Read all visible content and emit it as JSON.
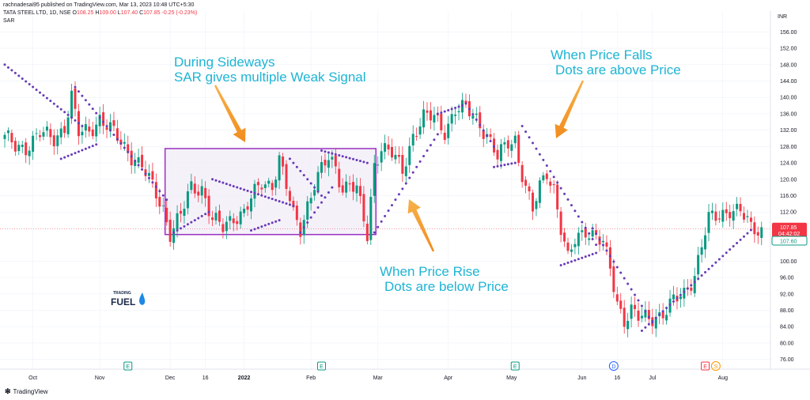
{
  "header": {
    "publisher_line": "rachnadesai95 published on TradingView.com, Mar 13, 2023 10:48 UTC+5:30",
    "symbol": "TATA STEEL LTD, 1D, NSE",
    "ohlc_open_label": "O",
    "ohlc_open": "108.25",
    "ohlc_high_label": "H",
    "ohlc_high": "109.00",
    "ohlc_low_label": "L",
    "ohlc_low": "107.40",
    "ohlc_close_label": "C",
    "ohlc_close": "107.85",
    "ohlc_change": "-0.25 (-0.23%)",
    "indicator": "SAR",
    "currency": "INR"
  },
  "footer": {
    "brand": "TradingView"
  },
  "watermark": "TRADING FUEL",
  "chart_data": {
    "type": "candlestick",
    "ylim": [
      74,
      158
    ],
    "yticks": [
      156,
      152,
      148,
      144,
      140,
      136,
      132,
      128,
      124,
      120,
      116,
      112,
      100,
      96,
      92,
      88,
      84,
      80,
      76
    ],
    "ytick_labels": [
      "156.00",
      "152.00",
      "148.00",
      "144.00",
      "140.00",
      "136.00",
      "132.00",
      "128.00",
      "124.00",
      "120.00",
      "116.00",
      "112.00",
      "100.00",
      "96.00",
      "92.00",
      "88.00",
      "84.00",
      "80.00",
      "76.00"
    ],
    "xticks": [
      {
        "label": "Oct",
        "bar": 8
      },
      {
        "label": "Nov",
        "bar": 27
      },
      {
        "label": "Dec",
        "bar": 47
      },
      {
        "label": "16",
        "bar": 57
      },
      {
        "label": "2022",
        "bar": 68
      },
      {
        "label": "Feb",
        "bar": 87
      },
      {
        "label": "Mar",
        "bar": 106
      },
      {
        "label": "Apr",
        "bar": 126
      },
      {
        "label": "May",
        "bar": 144
      },
      {
        "label": "Jun",
        "bar": 164
      },
      {
        "label": "16",
        "bar": 174
      },
      {
        "label": "Jul",
        "bar": 184
      },
      {
        "label": "Aug",
        "bar": 204
      }
    ],
    "last_price": {
      "value": 107.85,
      "label": "107.85",
      "countdown": "04:42:02"
    },
    "sar_value_label": {
      "value": 107.6,
      "label": "107.60"
    },
    "events": [
      {
        "bar": 35,
        "label": "E",
        "kind": "earnings"
      },
      {
        "bar": 90,
        "label": "E",
        "kind": "earnings"
      },
      {
        "bar": 145,
        "label": "E",
        "kind": "earnings"
      },
      {
        "bar": 173,
        "label": "D",
        "kind": "dividend"
      },
      {
        "bar": 199,
        "label": "E",
        "kind": "earnings"
      },
      {
        "bar": 202,
        "label": "S",
        "kind": "split"
      }
    ],
    "annotations": [
      {
        "name": "sideways",
        "lines": [
          "During Sideways",
          "SAR gives multiple Weak Signal"
        ]
      },
      {
        "name": "falls",
        "lines": [
          "When Price Falls",
          "Dots are above Price"
        ]
      },
      {
        "name": "rise",
        "lines": [
          "When Price Rise",
          "Dots are below Price"
        ]
      }
    ],
    "sideways_box": {
      "bar_start": 46,
      "bar_end": 105,
      "price_top": 127.5,
      "price_bottom": 106.5
    },
    "bar_count": 216,
    "close_anchors": [
      [
        0,
        130
      ],
      [
        3,
        128
      ],
      [
        6,
        128
      ],
      [
        10,
        131
      ],
      [
        14,
        130
      ],
      [
        17,
        133
      ],
      [
        19,
        140
      ],
      [
        21,
        131
      ],
      [
        24,
        132
      ],
      [
        27,
        135
      ],
      [
        30,
        132
      ],
      [
        33,
        129
      ],
      [
        36,
        126
      ],
      [
        39,
        123
      ],
      [
        42,
        118
      ],
      [
        45,
        113
      ],
      [
        47,
        107
      ],
      [
        50,
        111
      ],
      [
        53,
        118
      ],
      [
        56,
        118
      ],
      [
        59,
        110
      ],
      [
        62,
        108
      ],
      [
        65,
        111
      ],
      [
        68,
        112
      ],
      [
        70,
        115
      ],
      [
        73,
        119
      ],
      [
        76,
        119
      ],
      [
        78,
        125
      ],
      [
        80,
        118
      ],
      [
        82,
        111
      ],
      [
        84,
        108
      ],
      [
        86,
        114
      ],
      [
        88,
        119
      ],
      [
        90,
        122
      ],
      [
        92,
        125
      ],
      [
        94,
        123
      ],
      [
        96,
        118
      ],
      [
        98,
        119
      ],
      [
        100,
        117
      ],
      [
        102,
        110
      ],
      [
        103,
        106
      ],
      [
        105,
        124
      ],
      [
        107,
        128
      ],
      [
        110,
        126
      ],
      [
        113,
        122
      ],
      [
        116,
        131
      ],
      [
        119,
        135
      ],
      [
        122,
        135
      ],
      [
        125,
        132
      ],
      [
        128,
        137
      ],
      [
        131,
        137
      ],
      [
        134,
        135
      ],
      [
        137,
        131
      ],
      [
        140,
        125
      ],
      [
        143,
        129
      ],
      [
        145,
        130
      ],
      [
        146,
        125
      ],
      [
        148,
        118
      ],
      [
        150,
        112
      ],
      [
        152,
        118
      ],
      [
        154,
        122
      ],
      [
        156,
        118
      ],
      [
        158,
        108
      ],
      [
        160,
        100
      ],
      [
        162,
        105
      ],
      [
        165,
        108
      ],
      [
        168,
        106
      ],
      [
        170,
        104
      ],
      [
        172,
        98
      ],
      [
        174,
        90
      ],
      [
        176,
        86
      ],
      [
        178,
        88
      ],
      [
        180,
        86
      ],
      [
        183,
        86
      ],
      [
        186,
        87
      ],
      [
        188,
        88
      ],
      [
        190,
        90
      ],
      [
        193,
        92
      ],
      [
        196,
        97
      ],
      [
        198,
        104
      ],
      [
        200,
        110
      ],
      [
        203,
        111
      ],
      [
        206,
        113
      ],
      [
        209,
        112
      ],
      [
        212,
        107.85
      ],
      [
        215,
        107.85
      ]
    ],
    "sar_segments": [
      {
        "from": 0,
        "to": 22,
        "start": 148,
        "end": 133
      },
      {
        "from": 16,
        "to": 26,
        "start": 125,
        "end": 128.5
      },
      {
        "from": 20,
        "to": 46,
        "start": 142.5,
        "end": 115
      },
      {
        "from": 48,
        "to": 58,
        "start": 107,
        "end": 112
      },
      {
        "from": 59,
        "to": 82,
        "start": 120,
        "end": 113.5
      },
      {
        "from": 70,
        "to": 78,
        "start": 107.5,
        "end": 110
      },
      {
        "from": 81,
        "to": 90,
        "start": 125,
        "end": 116
      },
      {
        "from": 84,
        "to": 93,
        "start": 107,
        "end": 118
      },
      {
        "from": 90,
        "to": 103,
        "start": 127,
        "end": 124
      },
      {
        "from": 105,
        "to": 123,
        "start": 107,
        "end": 131
      },
      {
        "from": 123,
        "to": 130,
        "start": 136,
        "end": 138
      },
      {
        "from": 131,
        "to": 139,
        "start": 138.5,
        "end": 128
      },
      {
        "from": 139,
        "to": 145,
        "start": 123,
        "end": 124
      },
      {
        "from": 147,
        "to": 168,
        "start": 133,
        "end": 104
      },
      {
        "from": 158,
        "to": 168,
        "start": 99,
        "end": 102
      },
      {
        "from": 167,
        "to": 184,
        "start": 108,
        "end": 85
      },
      {
        "from": 181,
        "to": 212,
        "start": 83,
        "end": 107.6
      }
    ]
  }
}
